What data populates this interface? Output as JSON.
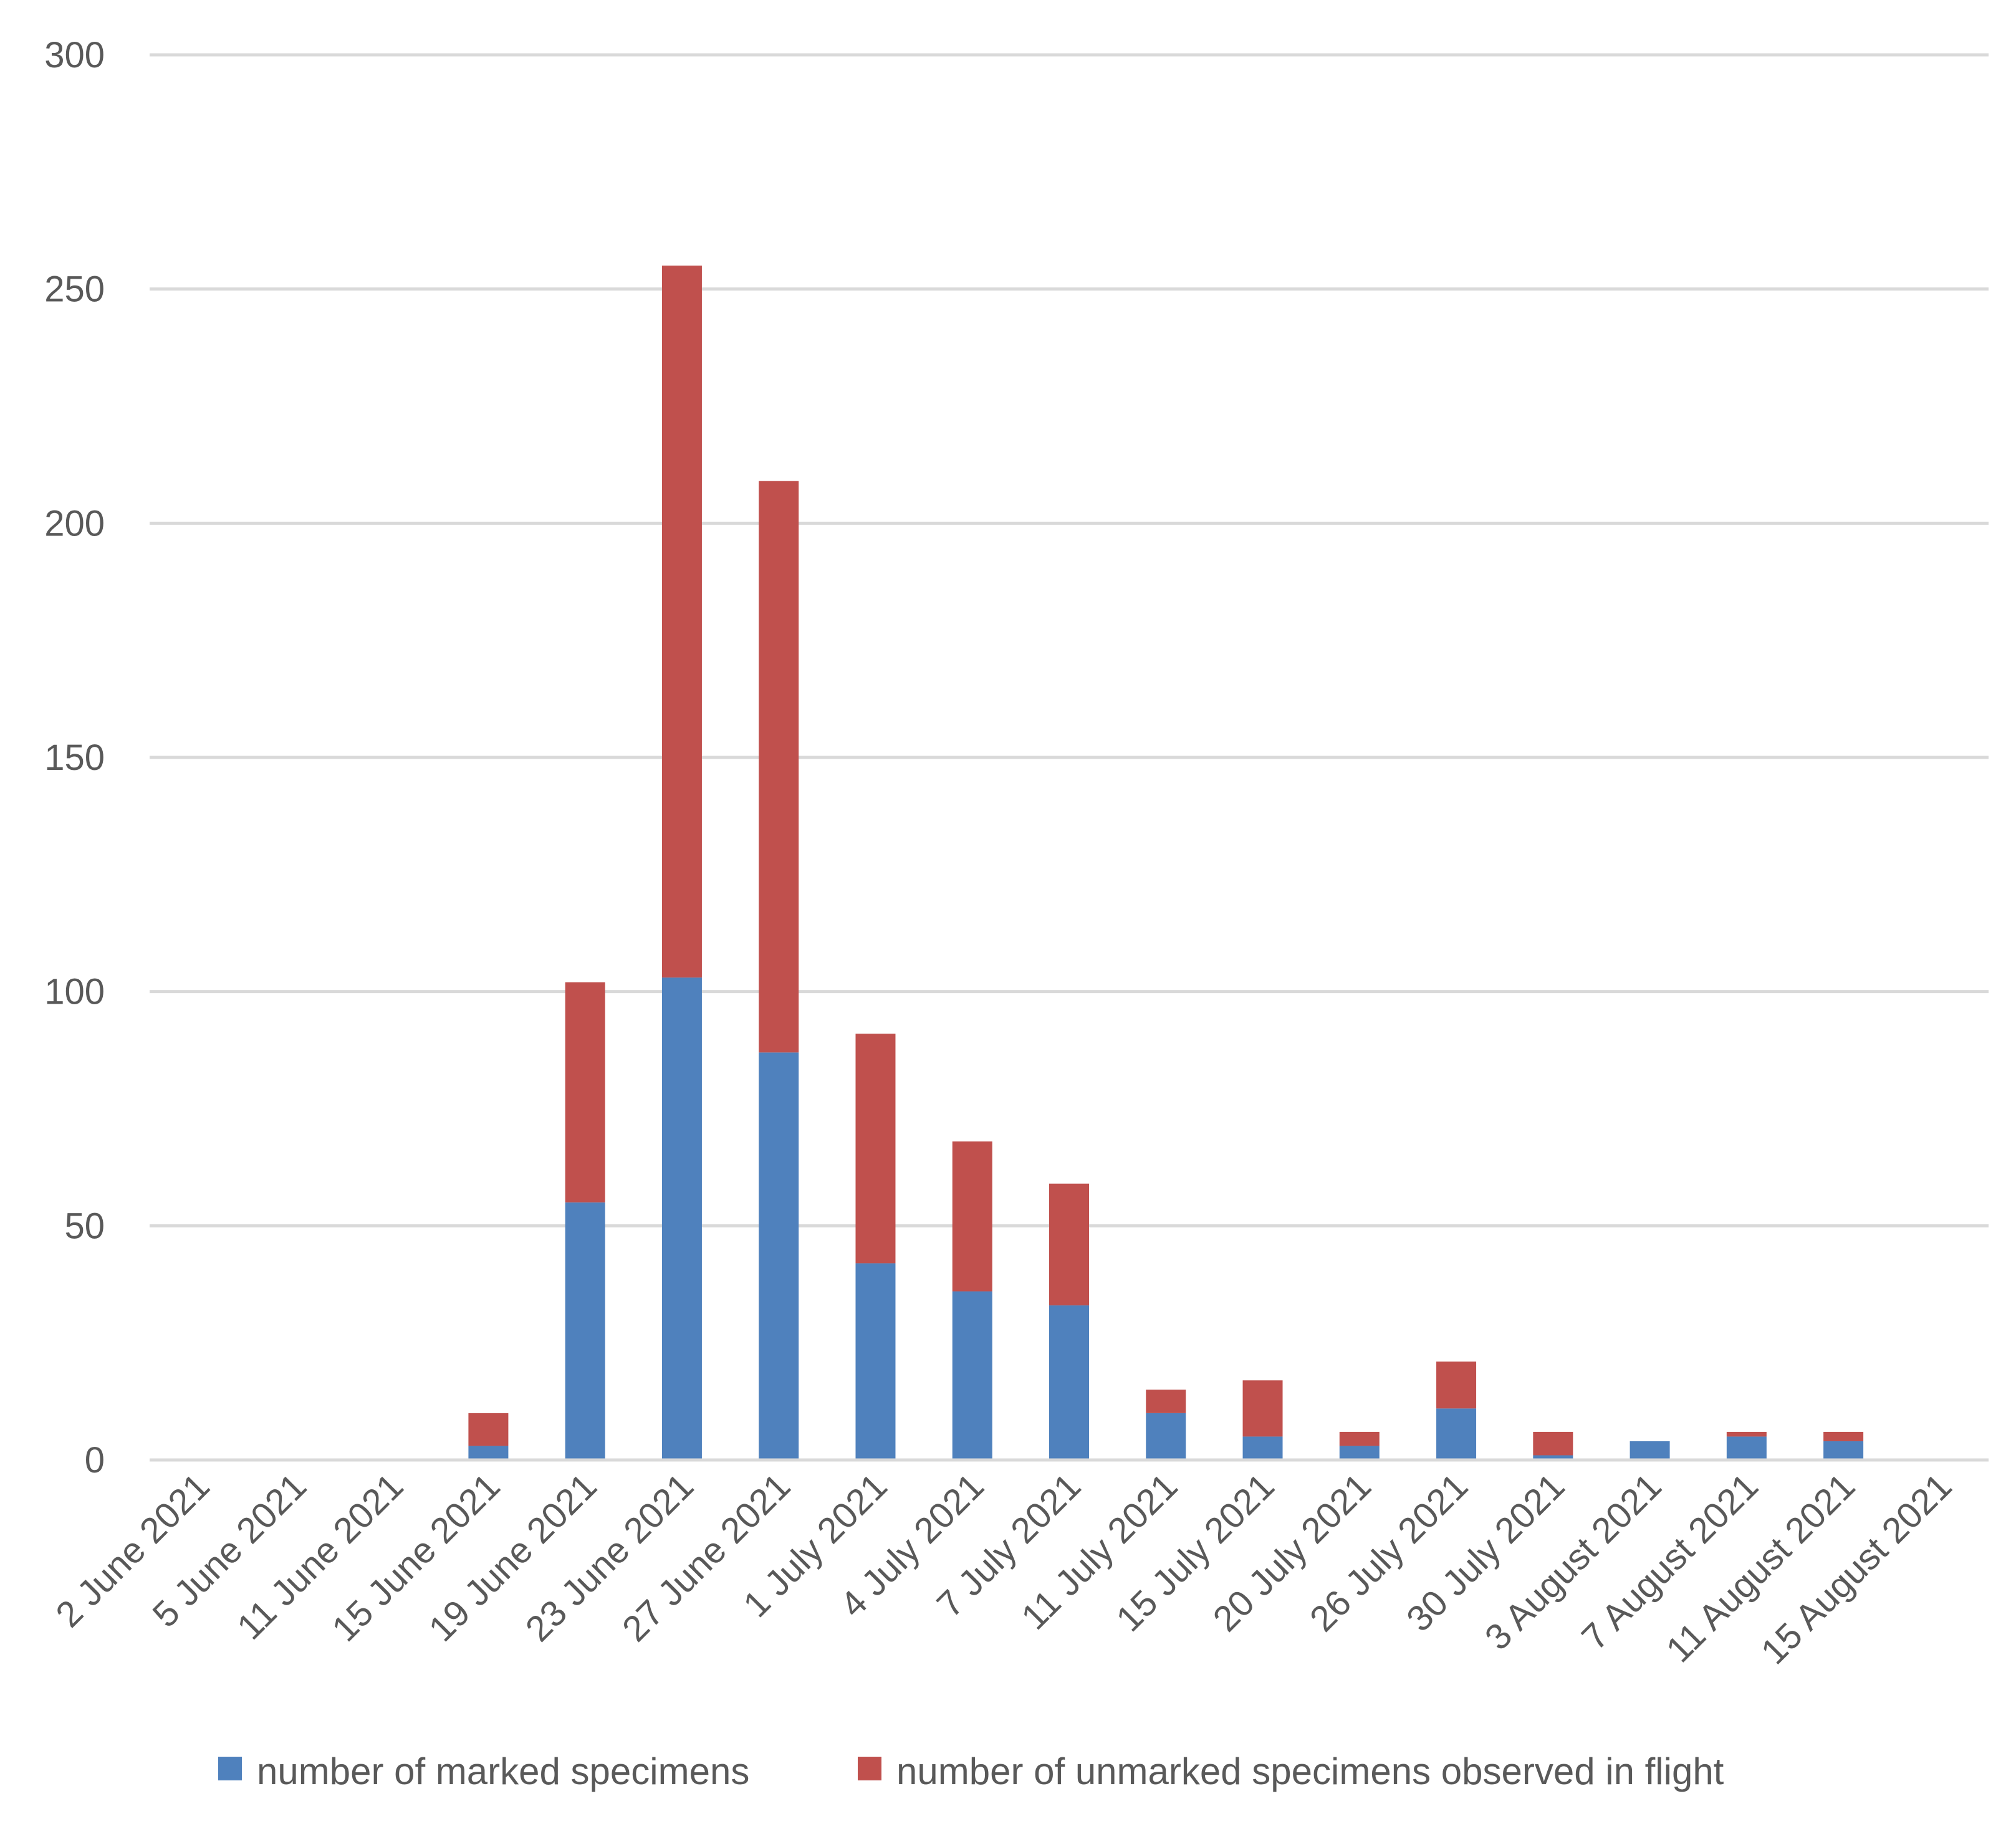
{
  "chart_data": {
    "type": "bar",
    "stacked": true,
    "title": "",
    "xlabel": "",
    "ylabel": "",
    "ylim": [
      0,
      300
    ],
    "yticks": [
      0,
      50,
      100,
      150,
      200,
      250,
      300
    ],
    "grid": true,
    "legend_position": "bottom",
    "categories": [
      "2 June 2021",
      "5 June 2021",
      "11 June 2021",
      "15 June 2021",
      "19 June 2021",
      "23 June 2021",
      "27 June 2021",
      "1 July 2021",
      "4 July 2021",
      "7 July 2021",
      "11 July 2021",
      "15 July 2021",
      "20 July 2021",
      "26 July 2021",
      "30 July 2021",
      "3 August 2021",
      "7 August 2021",
      "11 August 2021",
      "15 August 2021"
    ],
    "series": [
      {
        "name": "number of marked specimens",
        "color": "#4f81bd",
        "values": [
          0,
          0,
          0,
          3,
          55,
          103,
          87,
          42,
          36,
          33,
          10,
          5,
          3,
          11,
          1,
          4,
          5,
          4,
          0
        ]
      },
      {
        "name": "number of unmarked specimens observed in flight",
        "color": "#c0504d",
        "values": [
          0,
          0,
          0,
          7,
          47,
          152,
          122,
          49,
          32,
          26,
          5,
          12,
          3,
          10,
          5,
          0,
          1,
          2,
          0
        ]
      }
    ]
  }
}
